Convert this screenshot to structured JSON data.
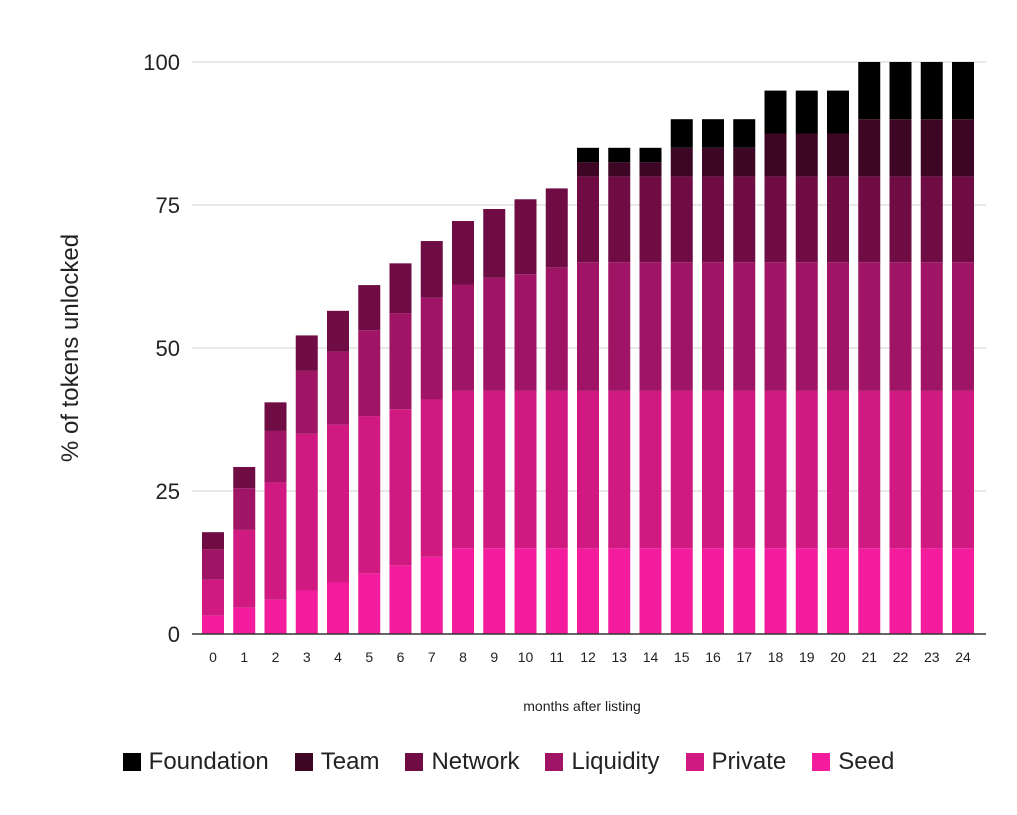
{
  "chart_data": {
    "type": "bar",
    "stacked": true,
    "title": "",
    "xlabel": "months after listing",
    "ylabel": "% of tokens unlocked",
    "ylim": [
      0,
      100
    ],
    "yticks": [
      "0",
      "25",
      "50",
      "75",
      "100"
    ],
    "grid": true,
    "legend_position": "bottom",
    "categories": [
      "0",
      "1",
      "2",
      "3",
      "4",
      "5",
      "6",
      "7",
      "8",
      "9",
      "10",
      "11",
      "12",
      "13",
      "14",
      "15",
      "16",
      "17",
      "18",
      "19",
      "20",
      "21",
      "22",
      "23",
      "24"
    ],
    "series": [
      {
        "name": "Seed",
        "color": "#f21c9c",
        "values": [
          3.2,
          4.6,
          6.0,
          7.6,
          9.0,
          10.6,
          12.0,
          13.5,
          15,
          15,
          15,
          15,
          15,
          15,
          15,
          15,
          15,
          15,
          15,
          15,
          15,
          15,
          15,
          15,
          15
        ]
      },
      {
        "name": "Private",
        "color": "#d01a82",
        "values": [
          6.3,
          13.6,
          20.5,
          27.4,
          27.6,
          27.5,
          27.3,
          27.5,
          27.5,
          27.5,
          27.5,
          27.5,
          27.5,
          27.5,
          27.5,
          27.5,
          27.5,
          27.5,
          27.5,
          27.5,
          27.5,
          27.5,
          27.5,
          27.5,
          27.5
        ]
      },
      {
        "name": "Liquidity",
        "color": "#a01466",
        "values": [
          5.3,
          7.3,
          9.0,
          11.0,
          12.8,
          15.0,
          16.8,
          17.8,
          18.6,
          19.8,
          20.4,
          21.6,
          22.5,
          22.5,
          22.5,
          22.5,
          22.5,
          22.5,
          22.5,
          22.5,
          22.5,
          22.5,
          22.5,
          22.5,
          22.5
        ]
      },
      {
        "name": "Network",
        "color": "#6e0c43",
        "values": [
          3.0,
          3.7,
          5.0,
          6.2,
          7.1,
          7.9,
          8.7,
          9.9,
          11.1,
          12.0,
          13.1,
          13.8,
          15,
          15,
          15,
          15,
          15,
          15,
          15,
          15,
          15,
          15,
          15,
          15,
          15
        ]
      },
      {
        "name": "Team",
        "color": "#3c0624",
        "values": [
          0,
          0,
          0,
          0,
          0,
          0,
          0,
          0,
          0,
          0,
          0,
          0,
          2.5,
          2.5,
          2.5,
          5,
          5,
          5,
          7.5,
          7.5,
          7.5,
          10,
          10,
          10,
          10
        ]
      },
      {
        "name": "Foundation",
        "color": "#000000",
        "values": [
          0,
          0,
          0,
          0,
          0,
          0,
          0,
          0,
          0,
          0,
          0,
          0,
          2.5,
          2.5,
          2.5,
          5,
          5,
          5,
          7.5,
          7.5,
          7.5,
          10,
          10,
          10,
          10
        ]
      }
    ],
    "legend_order": [
      "Foundation",
      "Team",
      "Network",
      "Liquidity",
      "Private",
      "Seed"
    ]
  }
}
